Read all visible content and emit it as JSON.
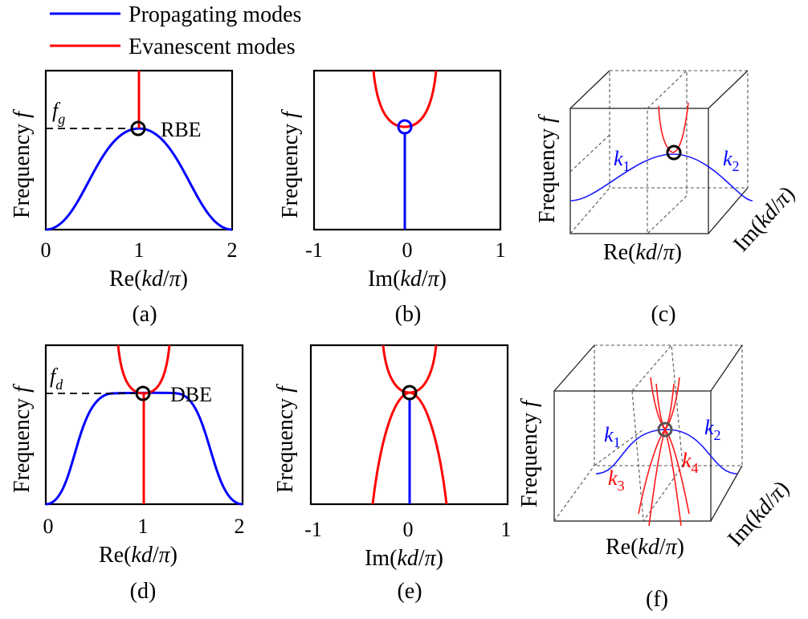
{
  "legend": {
    "propagating": {
      "label": "Propagating modes",
      "color": "#0000ff"
    },
    "evanescent": {
      "label": "Evanescent modes",
      "color": "#ff0000"
    }
  },
  "axis": {
    "ylabel": "Frequency",
    "ysym": "f",
    "re_pre": "Re(",
    "im_pre": "Im(",
    "arg_k": "kd",
    "arg_slash": "/",
    "arg_pi": "π",
    "close": ")"
  },
  "ticks": {
    "re": [
      "0",
      "1",
      "2"
    ],
    "im": [
      "-1",
      "0",
      "1"
    ]
  },
  "annotations": {
    "rbe": "RBE",
    "dbe": "DBE",
    "fg": "f",
    "fg_sub": "g",
    "fd": "f",
    "fd_sub": "d",
    "k": "k",
    "k1": "1",
    "k2": "2",
    "k3": "3",
    "k4": "4"
  },
  "captions": {
    "a": "(a)",
    "b": "(b)",
    "c": "(c)",
    "d": "(d)",
    "e": "(e)",
    "f": "(f)"
  }
}
